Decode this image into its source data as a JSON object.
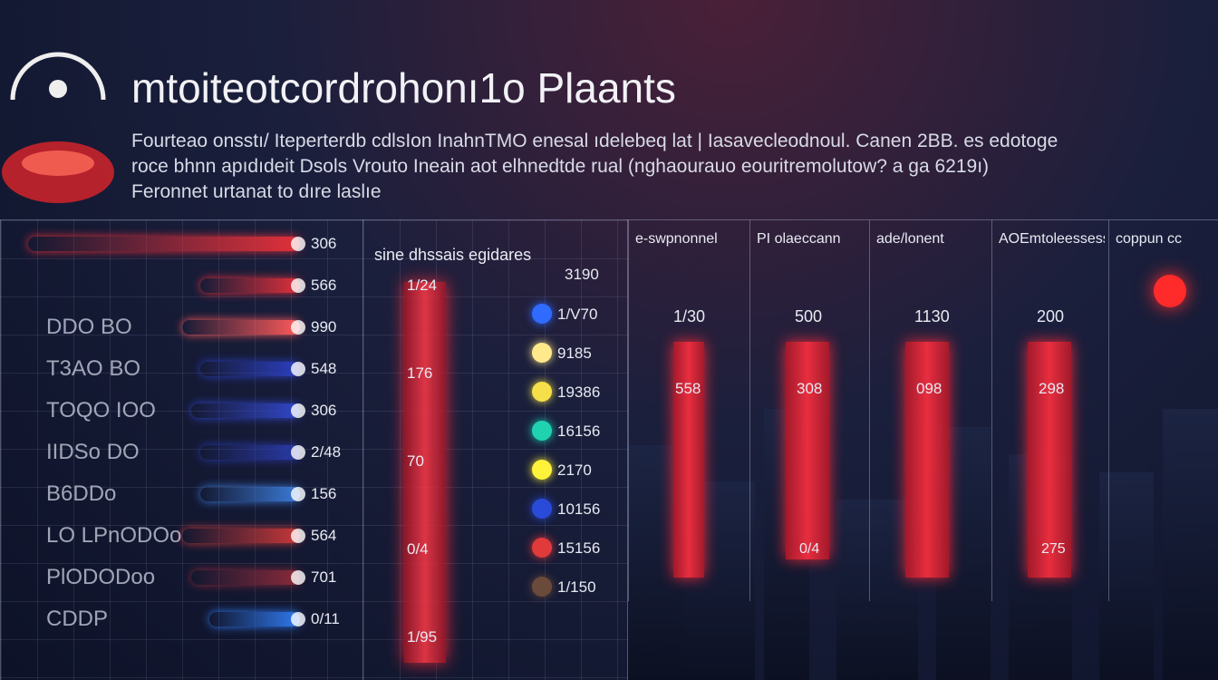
{
  "header": {
    "title": "mtoiteotcordrohonı1o Plaants",
    "description": [
      "Fourteao onsstı/ Iteperterdb cdlsIon InahnTMO enesal ıdelebeq lat | Iasavecleodnoul. Canen 2BB. es edotoge",
      "roce bhnn apıdıdeit Dsols   Vrouto Ineain aot elhnedtde rual (nghaourauo eouritremolutow? a ga 6219ı)",
      "Feronnet urtanat to dıre laslıe"
    ]
  },
  "left_panel": {
    "rows": [
      {
        "value": "306"
      },
      {
        "value": "566"
      },
      {
        "label": "DDO BO",
        "value": "990"
      },
      {
        "label": "T3AO BO",
        "value": "548"
      },
      {
        "label": "TOQO IOO",
        "value": "306"
      },
      {
        "label": "IIDSo DO",
        "value": "2/48"
      },
      {
        "label": "B6DDo",
        "value": "156"
      },
      {
        "label": "LO LPnODOo",
        "value": "564"
      },
      {
        "label": "PlODODoo",
        "value": "701"
      },
      {
        "label": "CDDP",
        "value": "0/11"
      }
    ]
  },
  "middle_panel": {
    "title": "sine dhssais egidares",
    "top_value": "3190",
    "column_labels": [
      "1/24",
      "176",
      "70",
      "0/4",
      "1/95"
    ],
    "dots": [
      {
        "color": "#2f6bff",
        "label": "1/V70"
      },
      {
        "color": "#ffe98a",
        "label": "9185"
      },
      {
        "color": "#f5e04a",
        "label": "19386"
      },
      {
        "color": "#1fd3b0",
        "label": "16156"
      },
      {
        "color": "#fff23a",
        "label": "2170"
      },
      {
        "color": "#2a4bd8",
        "label": "10156"
      },
      {
        "color": "#e03a3a",
        "label": "15156"
      },
      {
        "color": "#6a4a3a",
        "label": "1/150"
      }
    ]
  },
  "right_panel": {
    "columns": [
      {
        "header": "e-swpnonnel",
        "top": "1/30",
        "mid": "558"
      },
      {
        "header": "PI olaeccann",
        "top": "500",
        "mid": "308",
        "bottom": "0/4"
      },
      {
        "header": "ade/lonent",
        "top": "1130",
        "mid": "098"
      },
      {
        "header": "AOEmtoleessess",
        "top": "200",
        "mid": "298",
        "bottom": "275"
      },
      {
        "header": "coppun cc"
      }
    ]
  }
}
